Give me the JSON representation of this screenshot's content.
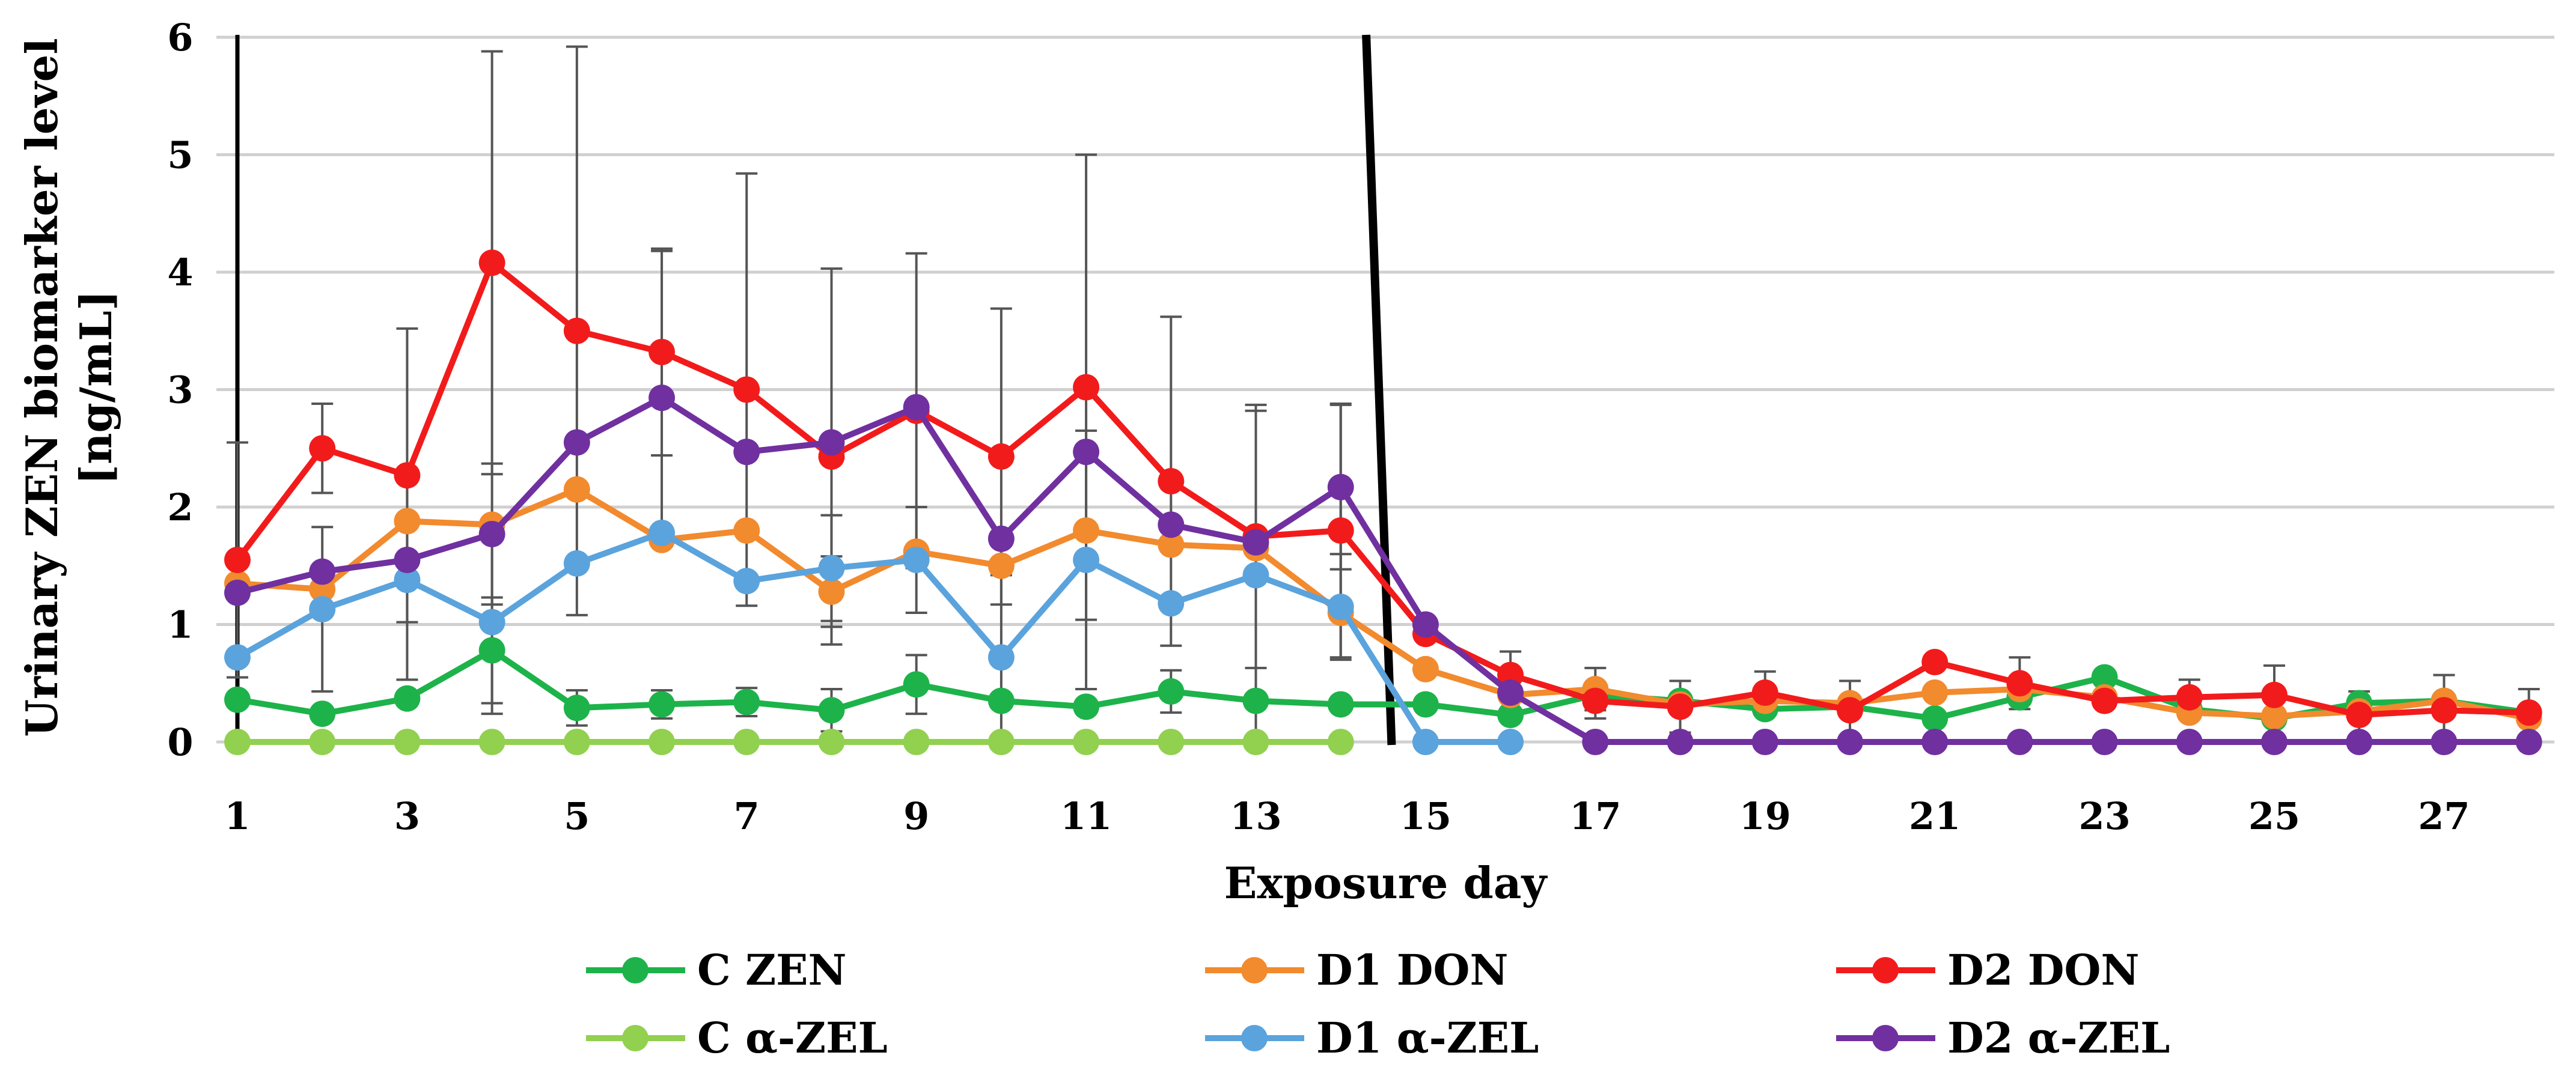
{
  "chart_data": {
    "type": "line",
    "title": "",
    "xlabel": "Exposure day",
    "ylabel": "Urinary ZEN biomarker level [ng/mL]",
    "ylabel_lines": [
      "Urinary ZEN biomarker level",
      "[ng/mL]"
    ],
    "xlim": [
      1,
      28
    ],
    "ylim": [
      0,
      6
    ],
    "x_ticks": [
      1,
      3,
      5,
      7,
      9,
      11,
      13,
      15,
      17,
      19,
      21,
      23,
      25,
      27
    ],
    "y_ticks": [
      0,
      1,
      2,
      3,
      4,
      5,
      6
    ],
    "grid": "horizontal",
    "legend_position": "bottom",
    "vertical_markers": [
      {
        "x1": 1,
        "x2": 1
      },
      {
        "x1": 14.3,
        "x2": 14.6
      }
    ],
    "days": [
      1,
      2,
      3,
      4,
      5,
      6,
      7,
      8,
      9,
      10,
      11,
      12,
      13,
      14,
      15,
      16,
      17,
      18,
      19,
      20,
      21,
      22,
      23,
      24,
      25,
      26,
      27,
      28
    ],
    "series": [
      {
        "name": "C ZEN",
        "color": "#1db34a",
        "values": [
          0.36,
          0.24,
          0.37,
          0.78,
          0.29,
          0.32,
          0.34,
          0.27,
          0.49,
          0.35,
          0.3,
          0.43,
          0.35,
          0.32,
          0.32,
          0.23,
          0.4,
          0.35,
          0.28,
          0.3,
          0.2,
          0.38,
          0.55,
          0.28,
          0.2,
          0.33,
          0.35,
          0.25
        ],
        "errors": [
          0,
          0,
          0,
          0.45,
          0.15,
          0.12,
          0.12,
          0.18,
          0.25,
          0,
          0,
          0.18,
          0,
          0,
          0,
          0,
          0,
          0,
          0,
          0,
          0,
          0,
          0,
          0,
          0,
          0,
          0,
          0
        ]
      },
      {
        "name": "D1 DON",
        "color": "#f28a2e",
        "values": [
          1.35,
          1.3,
          1.88,
          1.85,
          2.15,
          1.72,
          1.8,
          1.28,
          1.62,
          1.5,
          1.8,
          1.68,
          1.65,
          1.1,
          0.62,
          0.4,
          0.45,
          0.32,
          0.35,
          0.33,
          0.42,
          0.45,
          0.38,
          0.25,
          0.22,
          0.26,
          0.35,
          0.2
        ],
        "errors": [
          0,
          0,
          0,
          0,
          0,
          0,
          0,
          0.3,
          0,
          0,
          0,
          0,
          0,
          0,
          0,
          0,
          0.18,
          0,
          0,
          0,
          0,
          0,
          0,
          0,
          0,
          0,
          0,
          0
        ]
      },
      {
        "name": "D2 DON",
        "color": "#f21b1b",
        "values": [
          1.55,
          2.5,
          2.27,
          4.08,
          3.5,
          3.32,
          3.0,
          2.43,
          2.82,
          2.43,
          3.02,
          2.22,
          1.75,
          1.8,
          0.92,
          0.57,
          0.35,
          0.3,
          0.42,
          0.27,
          0.68,
          0.5,
          0.35,
          0.38,
          0.4,
          0.23,
          0.27,
          0.25
        ],
        "errors": [
          1.0,
          0.38,
          1.25,
          1.8,
          2.42,
          0.88,
          1.84,
          1.6,
          1.34,
          1.26,
          1.98,
          1.4,
          1.12,
          1.08,
          0,
          0.2,
          0.15,
          0.22,
          0.18,
          0.25,
          0,
          0.22,
          0,
          0.15,
          0.25,
          0.2,
          0.3,
          0.2
        ]
      },
      {
        "name": "C α-ZEL",
        "color": "#92d050",
        "values": [
          0,
          0,
          0,
          0,
          0,
          0,
          0,
          0,
          0,
          0,
          0,
          0,
          0,
          0,
          null,
          null,
          null,
          null,
          null,
          null,
          null,
          null,
          null,
          null,
          null,
          null,
          null,
          null
        ],
        "errors": [
          0,
          0,
          0,
          0,
          0,
          0,
          0,
          0,
          0,
          0,
          0,
          0,
          0,
          0,
          0,
          0,
          0,
          0,
          0,
          0,
          0,
          0,
          0,
          0,
          0,
          0,
          0,
          0
        ]
      },
      {
        "name": "D1 α-ZEL",
        "color": "#5ba3dc",
        "values": [
          0.72,
          1.13,
          1.38,
          1.02,
          1.52,
          1.78,
          1.37,
          1.48,
          1.55,
          0.72,
          1.55,
          1.18,
          1.42,
          1.15,
          0,
          0,
          null,
          null,
          null,
          null,
          null,
          null,
          null,
          null,
          null,
          null,
          null,
          null
        ],
        "errors": [
          0,
          0.7,
          0.85,
          0.78,
          0,
          0,
          0,
          0.45,
          0.45,
          0.7,
          1.1,
          0,
          1.4,
          0.45,
          0,
          0,
          0,
          0,
          0,
          0,
          0,
          0,
          0,
          0,
          0,
          0,
          0,
          0
        ]
      },
      {
        "name": "D2 α-ZEL",
        "color": "#7030a0",
        "values": [
          1.27,
          1.45,
          1.55,
          1.77,
          2.55,
          2.93,
          2.47,
          2.55,
          2.85,
          1.73,
          2.47,
          1.85,
          1.7,
          2.17,
          1.0,
          0.42,
          0,
          0,
          0,
          0,
          0,
          0,
          0,
          0,
          0,
          0,
          0,
          0
        ],
        "errors": [
          0,
          0,
          0,
          0.6,
          0,
          1.25,
          0,
          0,
          0,
          0,
          0,
          0,
          0,
          0.7,
          0,
          0,
          0,
          0,
          0,
          0,
          0,
          0,
          0,
          0,
          0,
          0,
          0,
          0
        ]
      }
    ]
  }
}
